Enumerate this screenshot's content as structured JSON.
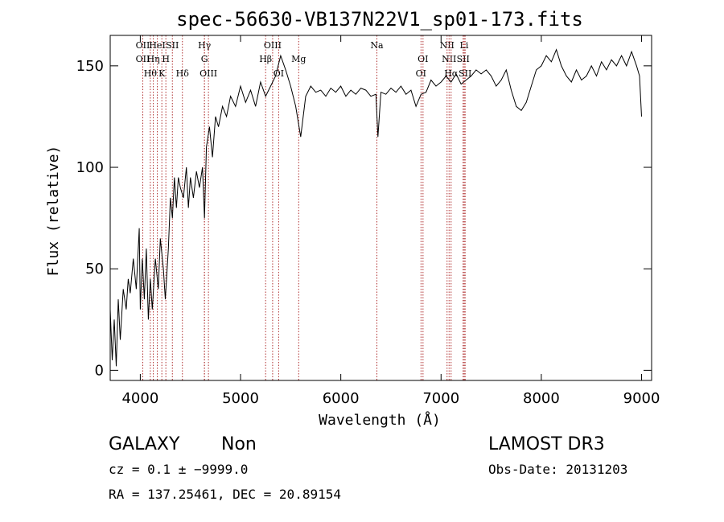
{
  "chart_data": {
    "type": "line",
    "title": "spec-56630-VB137N22V1_sp01-173.fits",
    "xlabel": "Wavelength (Å)",
    "ylabel": "Flux (relative)",
    "xlim": [
      3700,
      9100
    ],
    "ylim": [
      -5,
      165
    ],
    "x_ticks": [
      4000,
      5000,
      6000,
      7000,
      8000,
      9000
    ],
    "y_ticks": [
      0,
      50,
      100,
      150
    ],
    "grid": false,
    "series": [
      {
        "x": [
          3700,
          3720,
          3740,
          3760,
          3780,
          3800,
          3830,
          3860,
          3880,
          3900,
          3930,
          3960,
          3990,
          4000,
          4020,
          4040,
          4060,
          4080,
          4100,
          4120,
          4150,
          4180,
          4200,
          4230,
          4250,
          4280,
          4300,
          4320,
          4340,
          4360,
          4380,
          4400,
          4430,
          4460,
          4480,
          4500,
          4530,
          4560,
          4590,
          4620,
          4640,
          4660,
          4690,
          4720,
          4750,
          4780,
          4820,
          4860,
          4900,
          4950,
          5000,
          5050,
          5100,
          5150,
          5200,
          5250,
          5300,
          5350,
          5400,
          5450,
          5500,
          5550,
          5600,
          5650,
          5700,
          5750,
          5800,
          5850,
          5900,
          5950,
          6000,
          6050,
          6100,
          6150,
          6200,
          6250,
          6300,
          6350,
          6370,
          6400,
          6450,
          6500,
          6550,
          6600,
          6650,
          6700,
          6750,
          6800,
          6850,
          6900,
          6950,
          7000,
          7050,
          7100,
          7150,
          7200,
          7250,
          7300,
          7350,
          7400,
          7450,
          7500,
          7550,
          7600,
          7650,
          7700,
          7750,
          7800,
          7850,
          7900,
          7950,
          8000,
          8050,
          8100,
          8150,
          8200,
          8250,
          8300,
          8350,
          8400,
          8450,
          8500,
          8550,
          8600,
          8650,
          8700,
          8750,
          8800,
          8850,
          8900,
          8950,
          8980,
          9000
        ],
        "y": [
          30,
          5,
          25,
          2,
          35,
          15,
          40,
          30,
          45,
          38,
          55,
          40,
          70,
          30,
          55,
          35,
          60,
          25,
          45,
          30,
          55,
          40,
          65,
          50,
          35,
          60,
          85,
          75,
          95,
          80,
          95,
          90,
          85,
          100,
          80,
          95,
          85,
          98,
          90,
          100,
          75,
          110,
          120,
          105,
          125,
          120,
          130,
          125,
          135,
          130,
          140,
          132,
          138,
          130,
          142,
          135,
          140,
          145,
          155,
          148,
          140,
          130,
          115,
          135,
          140,
          137,
          138,
          135,
          139,
          137,
          140,
          135,
          138,
          136,
          139,
          138,
          135,
          136,
          115,
          137,
          136,
          139,
          137,
          140,
          136,
          138,
          130,
          136,
          137,
          143,
          140,
          142,
          145,
          142,
          146,
          141,
          143,
          145,
          148,
          146,
          148,
          145,
          140,
          143,
          148,
          138,
          130,
          128,
          132,
          140,
          148,
          150,
          155,
          152,
          158,
          150,
          145,
          142,
          148,
          143,
          145,
          150,
          145,
          152,
          148,
          153,
          150,
          155,
          150,
          157,
          150,
          145,
          125
        ]
      }
    ],
    "lines": [
      {
        "x": 4025,
        "label": "OII",
        "row": 0
      },
      {
        "x": 4025,
        "label": "OII",
        "row": 1
      },
      {
        "x": 4100,
        "label": "Hθ",
        "row": 2
      },
      {
        "x": 4130,
        "label": "Hη",
        "row": 1
      },
      {
        "x": 4170,
        "label": "HeI",
        "row": 0
      },
      {
        "x": 4215,
        "label": "K",
        "row": 2
      },
      {
        "x": 4255,
        "label": "H",
        "row": 1
      },
      {
        "x": 4320,
        "label": "SII",
        "row": 0
      },
      {
        "x": 4420,
        "label": "Hδ",
        "row": 2
      },
      {
        "x": 4640,
        "label": "Hγ",
        "row": 0
      },
      {
        "x": 4640,
        "label": "G",
        "row": 1
      },
      {
        "x": 4680,
        "label": "OIII",
        "row": 2
      },
      {
        "x": 5250,
        "label": "Hβ",
        "row": 1
      },
      {
        "x": 5320,
        "label": "OIII",
        "row": 0
      },
      {
        "x": 5380,
        "label": "OI",
        "row": 2
      },
      {
        "x": 5580,
        "label": "Mg",
        "row": 1
      },
      {
        "x": 6360,
        "label": "Na",
        "row": 0
      },
      {
        "x": 6820,
        "label": "OI",
        "row": 1
      },
      {
        "x": 6800,
        "label": "OI",
        "row": 2
      },
      {
        "x": 7060,
        "label": "NII",
        "row": 0
      },
      {
        "x": 7080,
        "label": "NII",
        "row": 1
      },
      {
        "x": 7100,
        "label": "Hα",
        "row": 2
      },
      {
        "x": 7230,
        "label": "Li",
        "row": 0
      },
      {
        "x": 7220,
        "label": "SII",
        "row": 1
      },
      {
        "x": 7240,
        "label": "SII",
        "row": 2
      }
    ]
  },
  "info": {
    "object_class": "GALAXY",
    "subclass": "Non",
    "survey": "LAMOST DR3",
    "cz": "cz = 0.1  ± −9999.0",
    "obs_date": "Obs-Date: 20131203",
    "coords": "RA = 137.25461, DEC =  20.89154"
  },
  "colors": {
    "spectrum": "#000000",
    "line_marker": "#b03030",
    "axes": "#000000"
  }
}
